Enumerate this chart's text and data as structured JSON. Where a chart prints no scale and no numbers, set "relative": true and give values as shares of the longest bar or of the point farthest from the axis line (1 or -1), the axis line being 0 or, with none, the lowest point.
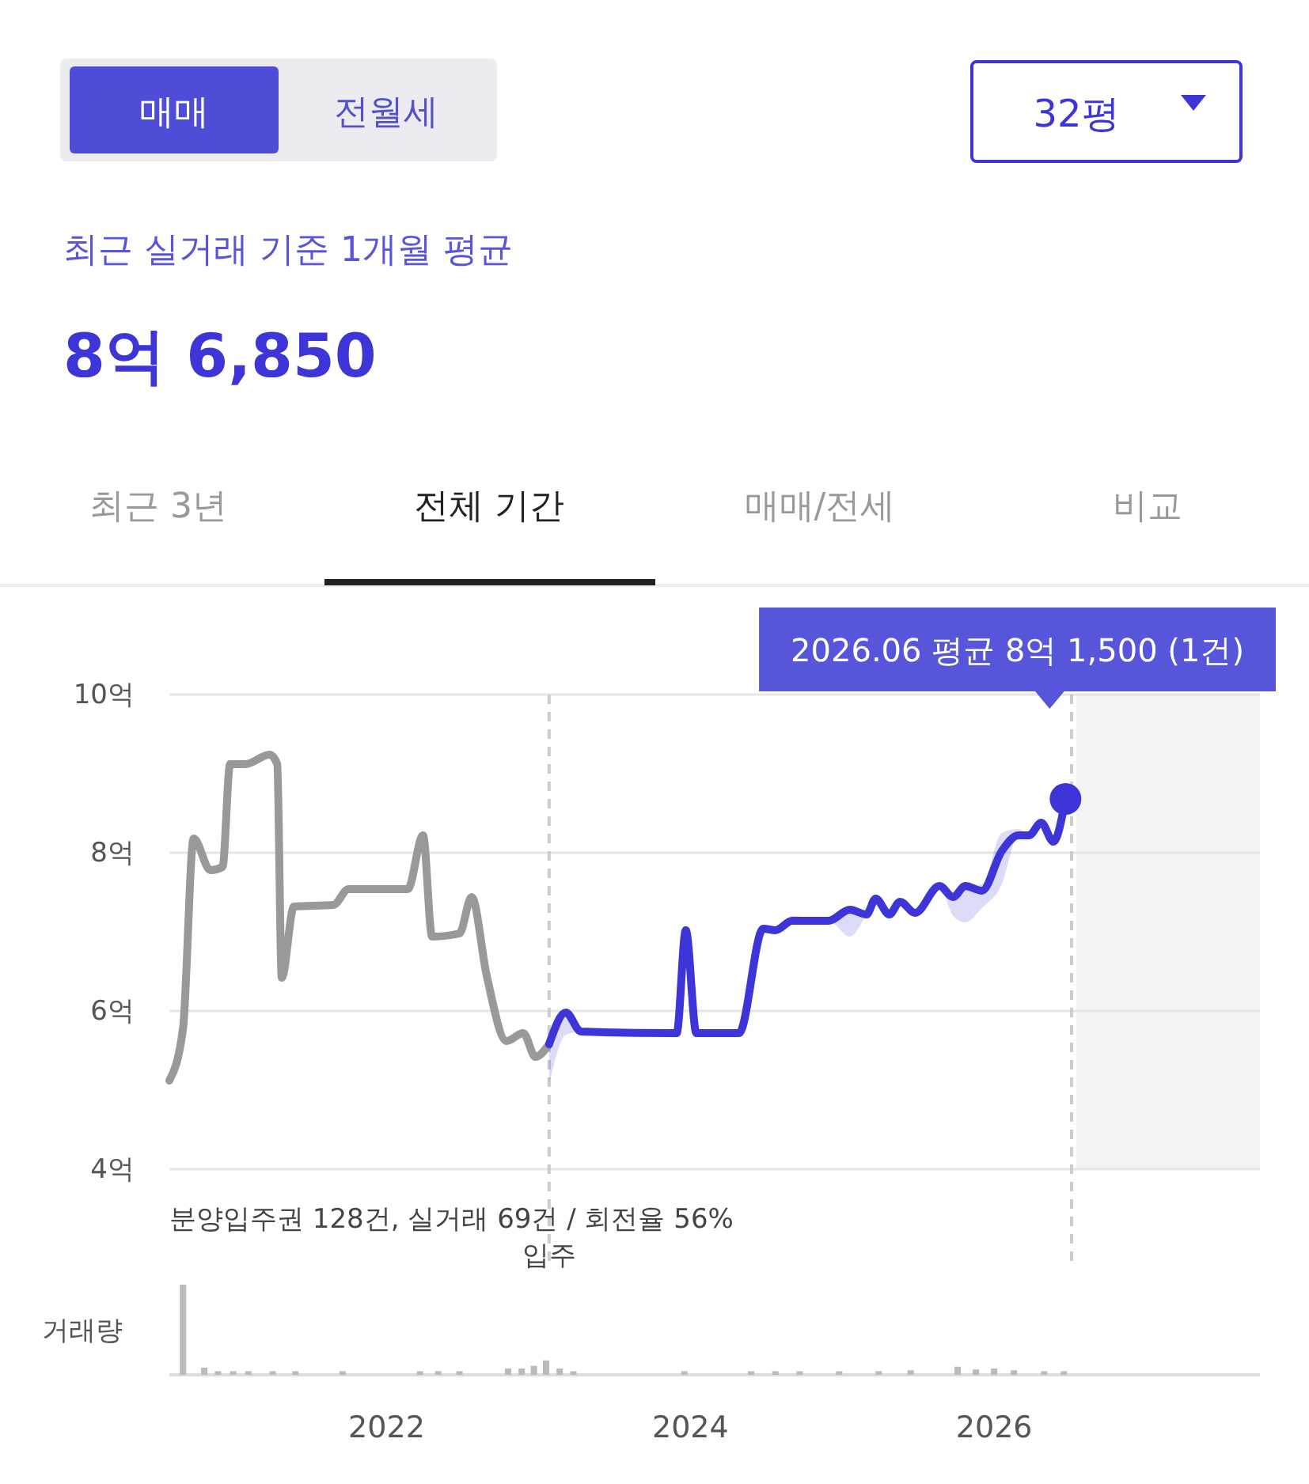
{
  "chart_data": [
    {
      "type": "line",
      "title": "최근 실거래 기준 1개월 평균",
      "subtitle": "8억 6,850",
      "annotations": [
        "매매",
        "전월세",
        "32평",
        "최근 3년",
        "전체 기간",
        "매매/전세",
        "비교",
        "분양입주권 128건, 실거래 69건 / 회전율 56%",
        "2026.06 평균 8억 1,500 (1건)"
      ],
      "xlim": [
        2020.57,
        2027.75
      ],
      "ylim": [
        4,
        10
      ],
      "yticks": [
        {
          "value": 4,
          "label": "4억"
        },
        {
          "value": 6,
          "label": "6억"
        },
        {
          "value": 8,
          "label": "8억"
        },
        {
          "value": 10,
          "label": "10억"
        }
      ],
      "grid": "y",
      "tick_labels": "y",
      "marker": "none",
      "line_style": "solid",
      "ref_lines": [
        {
          "axis": "x",
          "value": 2023.07,
          "label": "입주",
          "color": "#cccccc",
          "line_style": "dashed"
        },
        {
          "axis": "x",
          "value": 2026.51,
          "label": null,
          "color": "#cccccc",
          "line_style": "dashed"
        }
      ],
      "bands": [
        {
          "axis": "x",
          "from": 2026.54,
          "to": 2027.75,
          "label": null,
          "color": "#f3f3f3"
        }
      ],
      "series": [
        {
          "color": "#999999",
          "x": [
            2020.57,
            2020.66,
            2020.73,
            2020.84,
            2020.92,
            2020.97,
            2021.07,
            2021.23,
            2021.28,
            2021.31,
            2021.39,
            2021.65,
            2021.75,
            2022.14,
            2022.24,
            2022.3,
            2022.48,
            2022.56,
            2022.66,
            2022.79,
            2022.9,
            2022.98,
            2023.07
          ],
          "values": [
            5.12,
            5.78,
            8.18,
            7.78,
            7.82,
            9.12,
            9.12,
            9.24,
            9.12,
            6.42,
            7.32,
            7.34,
            7.54,
            7.54,
            8.22,
            6.94,
            6.98,
            7.44,
            6.44,
            5.62,
            5.72,
            5.42,
            5.58
          ]
        },
        {
          "color": "#3d35d8",
          "x": [
            2023.07,
            2023.18,
            2023.28,
            2023.86,
            2023.91,
            2023.97,
            2024.04,
            2024.32,
            2024.48,
            2024.56,
            2024.67,
            2024.91,
            2025.05,
            2025.16,
            2025.22,
            2025.31,
            2025.38,
            2025.48,
            2025.64,
            2025.73,
            2025.81,
            2025.92,
            2026.05,
            2026.16,
            2026.23,
            2026.31,
            2026.39,
            2026.47
          ],
          "values": [
            5.58,
            5.98,
            5.74,
            5.72,
            5.72,
            7.02,
            5.72,
            5.72,
            7.04,
            7.02,
            7.14,
            7.14,
            7.28,
            7.22,
            7.42,
            7.22,
            7.38,
            7.24,
            7.58,
            7.44,
            7.58,
            7.52,
            8.02,
            8.22,
            8.22,
            8.38,
            8.14,
            8.68
          ],
          "lower": [
            5.06,
            5.7,
            5.74,
            5.72,
            5.72,
            7.02,
            5.72,
            5.72,
            7.04,
            7.02,
            7.1,
            7.14,
            6.94,
            7.22,
            7.42,
            7.22,
            7.38,
            7.24,
            7.58,
            7.2,
            7.12,
            7.3,
            7.6,
            8.22,
            8.22,
            8.38,
            8.14,
            8.68
          ],
          "upper": [
            5.58,
            5.98,
            5.74,
            5.72,
            5.72,
            7.02,
            5.72,
            5.72,
            7.04,
            7.02,
            7.2,
            7.14,
            7.28,
            7.22,
            7.42,
            7.22,
            7.38,
            7.24,
            7.58,
            7.44,
            7.58,
            7.6,
            8.25,
            8.3,
            8.22,
            8.38,
            8.14,
            8.68
          ]
        }
      ]
    },
    {
      "type": "bar",
      "ylabel": "거래량",
      "relative": true,
      "xlim": [
        2020.57,
        2027.75
      ],
      "xticks": [
        2022,
        2024,
        2026
      ],
      "tick_labels": "x",
      "series": [
        {
          "color": "#bbbbbb",
          "x": [
            2020.66,
            2020.8,
            2020.89,
            2020.99,
            2021.09,
            2021.25,
            2021.4,
            2021.71,
            2022.22,
            2022.34,
            2022.48,
            2022.8,
            2022.89,
            2022.97,
            2023.05,
            2023.14,
            2023.23,
            2023.96,
            2024.4,
            2024.56,
            2024.72,
            2024.98,
            2025.24,
            2025.45,
            2025.76,
            2025.88,
            2026.0,
            2026.13,
            2026.33,
            2026.46
          ],
          "values": [
            1,
            0.08,
            0.04,
            0.04,
            0.04,
            0.04,
            0.04,
            0.04,
            0.04,
            0.04,
            0.04,
            0.07,
            0.07,
            0.1,
            0.16,
            0.07,
            0.04,
            0.04,
            0.04,
            0.04,
            0.04,
            0.04,
            0.04,
            0.05,
            0.09,
            0.06,
            0.07,
            0.05,
            0.04,
            0.04
          ]
        }
      ]
    }
  ]
}
